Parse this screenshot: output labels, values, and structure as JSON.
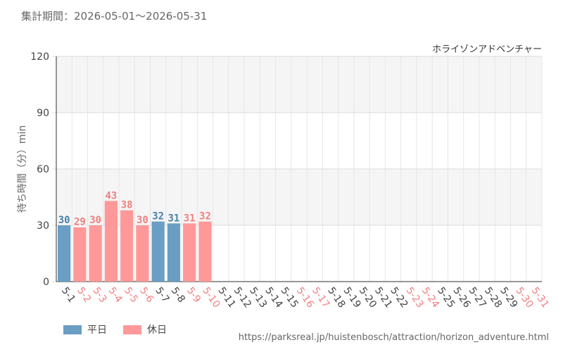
{
  "period_label": "集計期間：2026-05-01～2026-05-31",
  "source_url": "https://parksreal.jp/huistenbosch/attraction/horizon_adventure.html",
  "colors": {
    "weekday": "#6a9ec4",
    "holiday": "#ff9999",
    "weekday_text": "#4a7fab",
    "holiday_text": "#f08080"
  },
  "chart_data": {
    "type": "bar",
    "title": "ホライゾンアドベンチャー",
    "ylabel": "待ち時間（分）min",
    "xlabel": "",
    "ylim": [
      0,
      120
    ],
    "yticks": [
      0,
      30,
      60,
      90,
      120
    ],
    "grid": true,
    "legend_position": "bottom-left",
    "categories": [
      "5-1",
      "5-2",
      "5-3",
      "5-4",
      "5-5",
      "5-6",
      "5-7",
      "5-8",
      "5-9",
      "5-10",
      "5-11",
      "5-12",
      "5-13",
      "5-14",
      "5-15",
      "5-16",
      "5-17",
      "5-18",
      "5-19",
      "5-20",
      "5-21",
      "5-22",
      "5-23",
      "5-24",
      "5-25",
      "5-26",
      "5-27",
      "5-28",
      "5-29",
      "5-30",
      "5-31"
    ],
    "day_types": [
      "weekday",
      "holiday",
      "holiday",
      "holiday",
      "holiday",
      "holiday",
      "weekday",
      "weekday",
      "holiday",
      "holiday",
      "weekday",
      "weekday",
      "weekday",
      "weekday",
      "weekday",
      "holiday",
      "holiday",
      "weekday",
      "weekday",
      "weekday",
      "weekday",
      "weekday",
      "holiday",
      "holiday",
      "weekday",
      "weekday",
      "weekday",
      "weekday",
      "weekday",
      "holiday",
      "holiday"
    ],
    "values": [
      30,
      29,
      30,
      43,
      38,
      30,
      32,
      31,
      31,
      32,
      null,
      null,
      null,
      null,
      null,
      null,
      null,
      null,
      null,
      null,
      null,
      null,
      null,
      null,
      null,
      null,
      null,
      null,
      null,
      null,
      null
    ],
    "series": [
      {
        "name": "平日",
        "color": "#6a9ec4"
      },
      {
        "name": "休日",
        "color": "#ff9999"
      }
    ]
  }
}
